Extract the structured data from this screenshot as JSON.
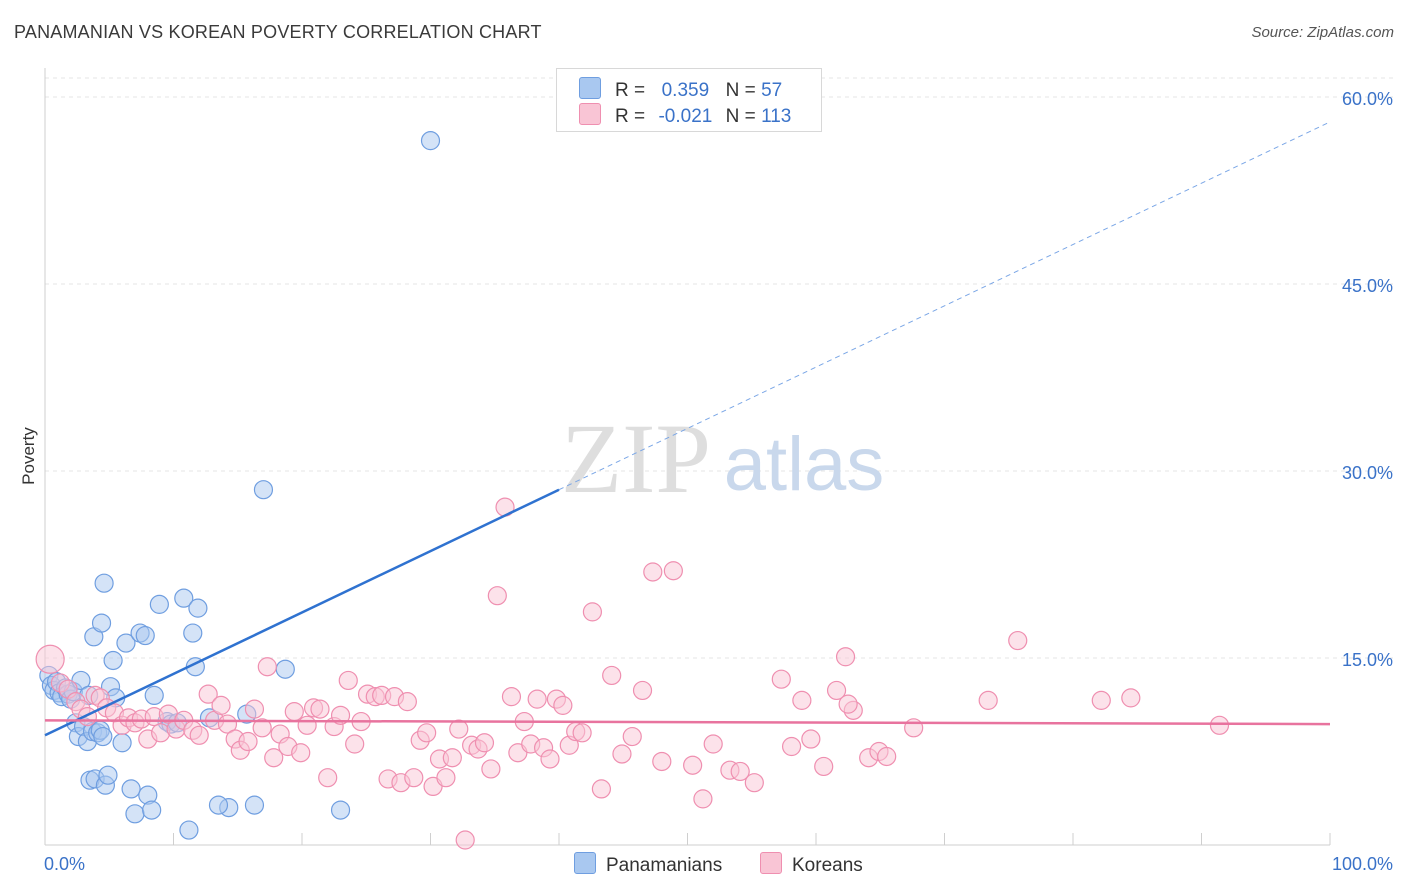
{
  "title": "PANAMANIAN VS KOREAN POVERTY CORRELATION CHART",
  "source": "Source: ZipAtlas.com",
  "watermark": {
    "zip": "ZIP",
    "atlas": "atlas"
  },
  "legend": {
    "r_label": "R =",
    "n_label": "N =",
    "rows": [
      {
        "r": "0.359",
        "n": "57",
        "color": "#a9c8f0",
        "border": "#6f9ee0"
      },
      {
        "r": "-0.021",
        "n": "113",
        "color": "#f9c5d5",
        "border": "#ef8fb0"
      }
    ]
  },
  "bottom_legend": [
    "Panamanians",
    "Koreans"
  ],
  "chart_data": {
    "type": "scatter",
    "title": "PANAMANIAN VS KOREAN POVERTY CORRELATION CHART",
    "xlabel": "",
    "ylabel": "Poverty",
    "xlim": [
      0,
      100
    ],
    "ylim": [
      0,
      64
    ],
    "x_tick_labels": [
      "0.0%",
      "100.0%"
    ],
    "y_ticks": [
      15,
      30,
      45,
      60
    ],
    "y_tick_labels": [
      "15.0%",
      "30.0%",
      "45.0%",
      "60.0%"
    ],
    "grid": true,
    "legend_position": "top-center",
    "series": [
      {
        "name": "Panamanians",
        "color": "#6f9ee0",
        "fill": "#a9c8f0",
        "trend": {
          "x0": 0,
          "y0": 8.8,
          "x1": 40,
          "y1": 28.5,
          "x_end_dashed": 100,
          "y_end_dashed": 58.0
        },
        "points": [
          [
            0.3,
            13.6
          ],
          [
            0.5,
            12.8
          ],
          [
            0.7,
            12.4
          ],
          [
            0.9,
            13.1
          ],
          [
            1.1,
            12.2
          ],
          [
            1.3,
            11.9
          ],
          [
            1.6,
            12.6
          ],
          [
            1.8,
            12.1
          ],
          [
            2.0,
            11.7
          ],
          [
            2.2,
            12.3
          ],
          [
            2.4,
            9.8
          ],
          [
            2.6,
            8.7
          ],
          [
            2.8,
            13.2
          ],
          [
            3.0,
            9.5
          ],
          [
            3.3,
            8.3
          ],
          [
            3.5,
            5.2
          ],
          [
            3.7,
            9.1
          ],
          [
            3.9,
            5.3
          ],
          [
            4.1,
            9.0
          ],
          [
            4.3,
            9.2
          ],
          [
            4.5,
            8.7
          ],
          [
            4.7,
            4.8
          ],
          [
            4.9,
            5.6
          ],
          [
            5.1,
            12.7
          ],
          [
            5.3,
            14.8
          ],
          [
            3.4,
            12.0
          ],
          [
            3.8,
            16.7
          ],
          [
            4.4,
            17.8
          ],
          [
            4.6,
            21.0
          ],
          [
            5.5,
            11.8
          ],
          [
            6.0,
            8.2
          ],
          [
            6.3,
            16.2
          ],
          [
            6.7,
            4.5
          ],
          [
            7.0,
            2.5
          ],
          [
            7.4,
            17.0
          ],
          [
            7.8,
            16.8
          ],
          [
            8.0,
            4.0
          ],
          [
            8.3,
            2.8
          ],
          [
            8.5,
            12.0
          ],
          [
            8.9,
            19.3
          ],
          [
            9.5,
            9.9
          ],
          [
            9.8,
            9.7
          ],
          [
            10.3,
            9.8
          ],
          [
            10.8,
            19.8
          ],
          [
            11.2,
            1.2
          ],
          [
            11.5,
            17.0
          ],
          [
            11.7,
            14.3
          ],
          [
            11.9,
            19.0
          ],
          [
            12.8,
            10.2
          ],
          [
            15.7,
            10.5
          ],
          [
            14.3,
            3.0
          ],
          [
            13.5,
            3.2
          ],
          [
            16.3,
            3.2
          ],
          [
            17.0,
            28.5
          ],
          [
            18.7,
            14.1
          ],
          [
            23.0,
            2.8
          ],
          [
            30.0,
            56.5
          ]
        ]
      },
      {
        "name": "Koreans",
        "color": "#ef8fb0",
        "fill": "#f9c5d5",
        "trend": {
          "x0": 0,
          "y0": 10.0,
          "x1": 100,
          "y1": 9.7
        },
        "points": [
          [
            0.4,
            14.9
          ],
          [
            1.2,
            13.0
          ],
          [
            1.8,
            12.5
          ],
          [
            2.4,
            11.5
          ],
          [
            2.8,
            10.9
          ],
          [
            3.3,
            10.3
          ],
          [
            3.9,
            12.0
          ],
          [
            4.3,
            11.8
          ],
          [
            4.8,
            11.0
          ],
          [
            5.4,
            10.6
          ],
          [
            6.0,
            9.6
          ],
          [
            6.5,
            10.2
          ],
          [
            7.0,
            9.8
          ],
          [
            7.5,
            10.1
          ],
          [
            8.0,
            8.5
          ],
          [
            8.5,
            10.3
          ],
          [
            9.0,
            9.0
          ],
          [
            9.6,
            10.5
          ],
          [
            10.2,
            9.3
          ],
          [
            10.8,
            10.0
          ],
          [
            11.5,
            9.2
          ],
          [
            12.0,
            8.8
          ],
          [
            12.7,
            12.1
          ],
          [
            13.2,
            10.0
          ],
          [
            13.7,
            11.2
          ],
          [
            14.2,
            9.7
          ],
          [
            14.8,
            8.5
          ],
          [
            15.2,
            7.6
          ],
          [
            15.8,
            8.3
          ],
          [
            16.3,
            10.9
          ],
          [
            16.9,
            9.4
          ],
          [
            17.3,
            14.3
          ],
          [
            17.8,
            7.0
          ],
          [
            18.3,
            8.9
          ],
          [
            18.9,
            7.9
          ],
          [
            19.4,
            10.7
          ],
          [
            19.9,
            7.4
          ],
          [
            20.4,
            9.6
          ],
          [
            20.9,
            11.0
          ],
          [
            21.4,
            10.9
          ],
          [
            22.0,
            5.4
          ],
          [
            22.5,
            9.5
          ],
          [
            23.0,
            10.4
          ],
          [
            23.6,
            13.2
          ],
          [
            24.1,
            8.1
          ],
          [
            24.6,
            9.9
          ],
          [
            25.1,
            12.1
          ],
          [
            25.7,
            11.9
          ],
          [
            26.2,
            12.0
          ],
          [
            26.7,
            5.3
          ],
          [
            27.2,
            11.9
          ],
          [
            27.7,
            5.0
          ],
          [
            28.2,
            11.5
          ],
          [
            28.7,
            5.4
          ],
          [
            29.2,
            8.4
          ],
          [
            29.7,
            9.0
          ],
          [
            30.2,
            4.7
          ],
          [
            30.7,
            6.9
          ],
          [
            31.2,
            5.4
          ],
          [
            31.7,
            7.0
          ],
          [
            32.2,
            9.3
          ],
          [
            32.7,
            0.4
          ],
          [
            33.2,
            8.0
          ],
          [
            33.7,
            7.7
          ],
          [
            34.2,
            8.2
          ],
          [
            34.7,
            6.1
          ],
          [
            35.2,
            20.0
          ],
          [
            35.8,
            27.1
          ],
          [
            36.3,
            11.9
          ],
          [
            36.8,
            7.4
          ],
          [
            37.3,
            9.9
          ],
          [
            37.8,
            8.1
          ],
          [
            38.3,
            11.7
          ],
          [
            38.8,
            7.8
          ],
          [
            39.3,
            6.9
          ],
          [
            39.8,
            11.7
          ],
          [
            40.3,
            11.2
          ],
          [
            40.8,
            8.0
          ],
          [
            41.3,
            9.1
          ],
          [
            41.8,
            9.0
          ],
          [
            42.6,
            18.7
          ],
          [
            43.3,
            4.5
          ],
          [
            44.1,
            13.6
          ],
          [
            44.9,
            7.3
          ],
          [
            45.7,
            8.7
          ],
          [
            46.5,
            12.4
          ],
          [
            47.3,
            21.9
          ],
          [
            48.0,
            6.7
          ],
          [
            48.9,
            22.0
          ],
          [
            50.4,
            6.4
          ],
          [
            51.2,
            3.7
          ],
          [
            52.0,
            8.1
          ],
          [
            53.3,
            6.0
          ],
          [
            54.1,
            5.9
          ],
          [
            55.2,
            5.0
          ],
          [
            57.3,
            13.3
          ],
          [
            58.1,
            7.9
          ],
          [
            58.9,
            11.6
          ],
          [
            59.6,
            8.5
          ],
          [
            60.6,
            6.3
          ],
          [
            61.6,
            12.4
          ],
          [
            62.3,
            15.1
          ],
          [
            62.9,
            10.8
          ],
          [
            64.1,
            7.0
          ],
          [
            64.9,
            7.5
          ],
          [
            65.5,
            7.1
          ],
          [
            67.6,
            9.4
          ],
          [
            73.4,
            11.6
          ],
          [
            75.7,
            16.4
          ],
          [
            82.2,
            11.6
          ],
          [
            84.5,
            11.8
          ],
          [
            91.4,
            9.6
          ],
          [
            62.5,
            11.3
          ]
        ]
      }
    ]
  }
}
